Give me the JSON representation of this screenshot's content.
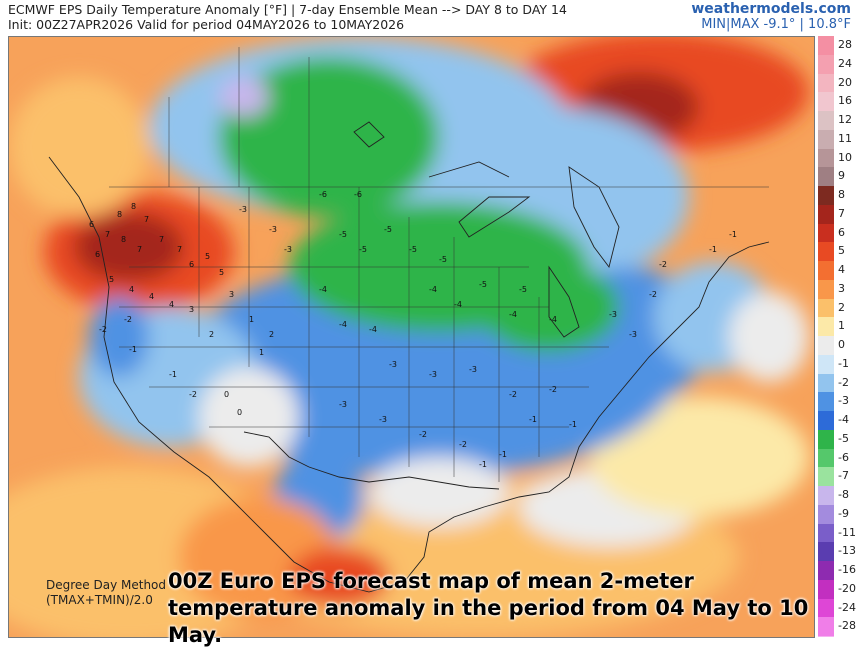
{
  "header": {
    "title": "ECMWF EPS Daily Temperature Anomaly [°F] | 7-day Ensemble Mean --> DAY 8 to DAY 14",
    "init": "Init: 00Z27APR2026 Valid for period 04MAY2026 to 10MAY2026",
    "brand": "weathermodels.com",
    "minmax": "MIN|MAX -9.1° | 10.8°F"
  },
  "legend": {
    "levels": [
      {
        "label": "28",
        "color": "#f48fa3"
      },
      {
        "label": "24",
        "color": "#f4a0b0"
      },
      {
        "label": "20",
        "color": "#f3b5c0"
      },
      {
        "label": "16",
        "color": "#f1c6cf"
      },
      {
        "label": "12",
        "color": "#dcc2c4"
      },
      {
        "label": "11",
        "color": "#c9adb0"
      },
      {
        "label": "10",
        "color": "#b69598"
      },
      {
        "label": "9",
        "color": "#9f7f83"
      },
      {
        "label": "8",
        "color": "#7d2a20"
      },
      {
        "label": "7",
        "color": "#a4251c"
      },
      {
        "label": "6",
        "color": "#c92f1f"
      },
      {
        "label": "5",
        "color": "#e84a23"
      },
      {
        "label": "4",
        "color": "#f36f31"
      },
      {
        "label": "3",
        "color": "#f9974a"
      },
      {
        "label": "2",
        "color": "#fbc06a"
      },
      {
        "label": "1",
        "color": "#fce9a8"
      },
      {
        "label": "0",
        "color": "#ececec"
      },
      {
        "label": "-1",
        "color": "#cfe6f7"
      },
      {
        "label": "-2",
        "color": "#92c4ee"
      },
      {
        "label": "-3",
        "color": "#4f92e3"
      },
      {
        "label": "-4",
        "color": "#2d6bd8"
      },
      {
        "label": "-5",
        "color": "#2fb44a"
      },
      {
        "label": "-6",
        "color": "#55c86b"
      },
      {
        "label": "-7",
        "color": "#9ae39e"
      },
      {
        "label": "-8",
        "color": "#c8b6ec"
      },
      {
        "label": "-9",
        "color": "#a38bde"
      },
      {
        "label": "-11",
        "color": "#7a5ec9"
      },
      {
        "label": "-13",
        "color": "#5a3db0"
      },
      {
        "label": "-16",
        "color": "#8e2bb0"
      },
      {
        "label": "-20",
        "color": "#c22fc0"
      },
      {
        "label": "-24",
        "color": "#de46d6"
      },
      {
        "label": "-28",
        "color": "#f07ee8"
      }
    ]
  },
  "map": {
    "region": "North America",
    "anomaly_labels": [
      {
        "v": "8"
      },
      {
        "v": "8"
      },
      {
        "v": "7"
      },
      {
        "v": "6"
      },
      {
        "v": "7"
      },
      {
        "v": "8"
      },
      {
        "v": "7"
      },
      {
        "v": "6"
      },
      {
        "v": "7"
      },
      {
        "v": "7"
      },
      {
        "v": "6"
      },
      {
        "v": "5"
      },
      {
        "v": "5"
      },
      {
        "v": "4"
      },
      {
        "v": "5"
      },
      {
        "v": "4"
      },
      {
        "v": "4"
      },
      {
        "v": "3"
      },
      {
        "v": "3"
      },
      {
        "v": "2"
      },
      {
        "v": "2"
      },
      {
        "v": "1"
      },
      {
        "v": "1"
      },
      {
        "v": "0"
      },
      {
        "v": "0"
      },
      {
        "v": "-1"
      },
      {
        "v": "-1"
      },
      {
        "v": "-2"
      },
      {
        "v": "-2"
      },
      {
        "v": "-2"
      },
      {
        "v": "-3"
      },
      {
        "v": "-3"
      },
      {
        "v": "-3"
      },
      {
        "v": "-4"
      },
      {
        "v": "-4"
      },
      {
        "v": "-4"
      },
      {
        "v": "-5"
      },
      {
        "v": "-5"
      },
      {
        "v": "-5"
      },
      {
        "v": "-5"
      },
      {
        "v": "-6"
      },
      {
        "v": "-6"
      },
      {
        "v": "-4"
      },
      {
        "v": "-4"
      },
      {
        "v": "-5"
      },
      {
        "v": "-3"
      },
      {
        "v": "-3"
      },
      {
        "v": "-3"
      },
      {
        "v": "-2"
      },
      {
        "v": "-2"
      },
      {
        "v": "-1"
      },
      {
        "v": "-1"
      },
      {
        "v": "-3"
      },
      {
        "v": "-3"
      },
      {
        "v": "-2"
      },
      {
        "v": "-2"
      },
      {
        "v": "-1"
      },
      {
        "v": "-1"
      },
      {
        "v": "-4"
      },
      {
        "v": "-4"
      },
      {
        "v": "-5"
      },
      {
        "v": "-5"
      },
      {
        "v": "-3"
      },
      {
        "v": "-3"
      },
      {
        "v": "-2"
      },
      {
        "v": "-1"
      },
      {
        "v": "-1"
      },
      {
        "v": "-2"
      }
    ]
  },
  "footer": {
    "dd_line1": "Degree Day Method",
    "dd_line2": "(TMAX+TMIN)/2.0",
    "caption": "00Z Euro EPS forecast map of mean 2-meter temperature anomaly in the period from 04 May to 10 May."
  }
}
